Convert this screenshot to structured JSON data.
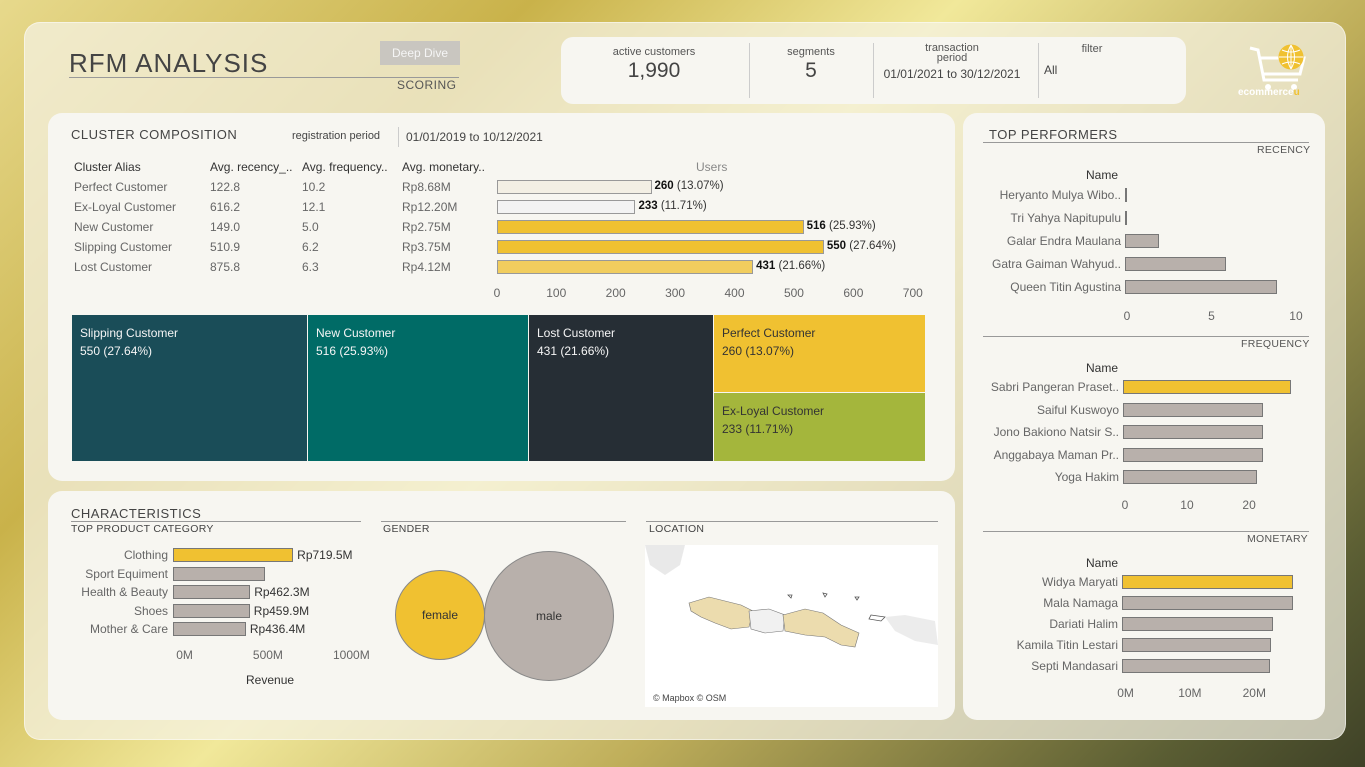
{
  "header": {
    "title": "RFM ANALYSIS",
    "deep_dive_label": "Deep Dive",
    "scoring_label": "SCORING"
  },
  "kpis": {
    "active_customers": {
      "label": "active customers",
      "value": "1,990"
    },
    "segments": {
      "label": "segments",
      "value": "5"
    },
    "transaction_period": {
      "label": "transaction period",
      "value": "01/01/2021 to 30/12/2021"
    },
    "filter": {
      "label": "filter",
      "value": "All"
    }
  },
  "logo": {
    "text_main": "ecommerce",
    "text_accent": "u"
  },
  "cluster": {
    "title": "CLUSTER COMPOSITION",
    "registration_label": "registration period",
    "registration_value": "01/01/2019 to 10/12/2021",
    "columns": [
      "Cluster Alias",
      "Avg. recency_..",
      "Avg. frequency..",
      "Avg. monetary..",
      "Users"
    ],
    "rows": [
      {
        "alias": "Perfect Customer",
        "recency": "122.8",
        "frequency": "10.2",
        "monetary": "Rp8.68M",
        "users": 260,
        "pct": "(13.07%)",
        "color": "#f3efe4"
      },
      {
        "alias": "Ex-Loyal Customer",
        "recency": "616.2",
        "frequency": "12.1",
        "monetary": "Rp12.20M",
        "users": 233,
        "pct": "(11.71%)",
        "color": "#f3f3f3"
      },
      {
        "alias": "New Customer",
        "recency": "149.0",
        "frequency": "5.0",
        "monetary": "Rp2.75M",
        "users": 516,
        "pct": "(25.93%)",
        "color": "#f0c131"
      },
      {
        "alias": "Slipping Customer",
        "recency": "510.9",
        "frequency": "6.2",
        "monetary": "Rp3.75M",
        "users": 550,
        "pct": "(27.64%)",
        "color": "#f0c131"
      },
      {
        "alias": "Lost Customer",
        "recency": "875.8",
        "frequency": "6.3",
        "monetary": "Rp4.12M",
        "users": 431,
        "pct": "(21.66%)",
        "color": "#f1cd5e"
      }
    ],
    "axis_ticks": [
      "0",
      "100",
      "200",
      "300",
      "400",
      "500",
      "600",
      "700"
    ],
    "axis_max": 700
  },
  "treemap": [
    {
      "name": "Slipping Customer",
      "value": "550 (27.64%)",
      "color": "#1a4d58"
    },
    {
      "name": "New Customer",
      "value": "516 (25.93%)",
      "color": "#006b66"
    },
    {
      "name": "Lost Customer",
      "value": "431 (21.66%)",
      "color": "#262e35"
    },
    {
      "name": "Perfect Customer",
      "value": "260 (13.07%)",
      "color": "#f0c131"
    },
    {
      "name": "Ex-Loyal Customer",
      "value": "233 (11.71%)",
      "color": "#a4b63c"
    }
  ],
  "characteristics": {
    "title": "CHARACTERISTICS",
    "product": {
      "title": "TOP PRODUCT CATEGORY",
      "items": [
        {
          "name": "Clothing",
          "value": 719.5,
          "label": "Rp719.5M"
        },
        {
          "name": "Sport Equiment",
          "value": 550,
          "label": ""
        },
        {
          "name": "Health & Beauty",
          "value": 462.3,
          "label": "Rp462.3M"
        },
        {
          "name": "Shoes",
          "value": 459.9,
          "label": "Rp459.9M"
        },
        {
          "name": "Mother & Care",
          "value": 436.4,
          "label": "Rp436.4M"
        }
      ],
      "axis_ticks": [
        "0M",
        "500M",
        "1000M"
      ],
      "axis_max": 1000,
      "xlabel": "Revenue"
    },
    "gender": {
      "title": "GENDER",
      "female": "female",
      "male": "male"
    },
    "location": {
      "title": "LOCATION",
      "credit": "© Mapbox © OSM"
    }
  },
  "top_performers": {
    "title": "TOP PERFORMERS",
    "name_header": "Name",
    "recency": {
      "label": "RECENCY",
      "items": [
        {
          "name": "Heryanto Mulya Wibo..",
          "value": 0.1
        },
        {
          "name": "Tri Yahya Napitupulu",
          "value": 0.1
        },
        {
          "name": "Galar Endra Maulana",
          "value": 2
        },
        {
          "name": "Gatra Gaiman Wahyud..",
          "value": 6
        },
        {
          "name": "Queen Titin Agustina",
          "value": 9
        }
      ],
      "axis_ticks": [
        "0",
        "5",
        "10"
      ],
      "axis_max": 11
    },
    "frequency": {
      "label": "FREQUENCY",
      "items": [
        {
          "name": "Sabri Pangeran Praset..",
          "value": 27
        },
        {
          "name": "Saiful Kuswoyo",
          "value": 22.5
        },
        {
          "name": "Jono Bakiono Natsir S..",
          "value": 22.5
        },
        {
          "name": "Anggabaya Maman Pr..",
          "value": 22.5
        },
        {
          "name": "Yoga Hakim",
          "value": 21.5
        }
      ],
      "axis_ticks": [
        "0",
        "10",
        "20"
      ],
      "axis_max": 28.5
    },
    "monetary": {
      "label": "MONETARY",
      "items": [
        {
          "name": "Widya Maryati",
          "value": 26.5
        },
        {
          "name": "Mala Namaga",
          "value": 26.5
        },
        {
          "name": "Dariati Halim",
          "value": 23.5
        },
        {
          "name": "Kamila Titin Lestari",
          "value": 23.2
        },
        {
          "name": "Septi Mandasari",
          "value": 23
        }
      ],
      "axis_ticks": [
        "0M",
        "10M",
        "20M"
      ],
      "axis_max": 29.5
    }
  }
}
